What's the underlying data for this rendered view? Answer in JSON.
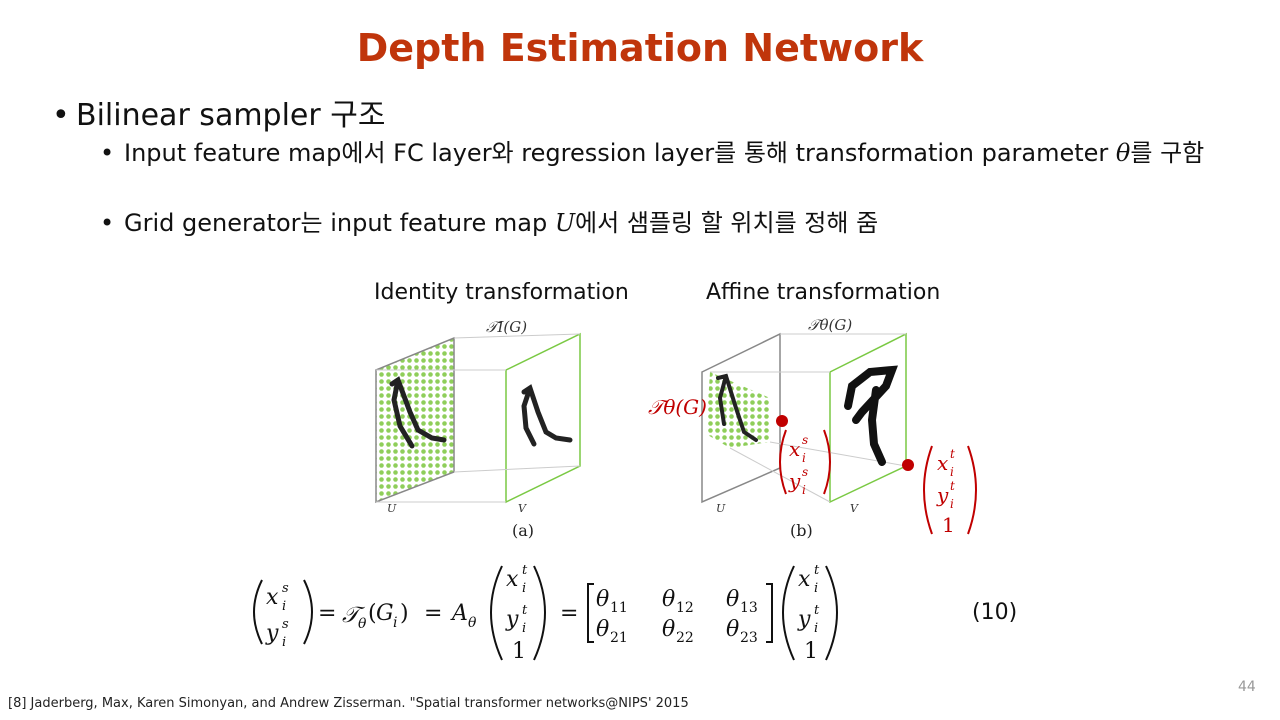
{
  "title": "Depth Estimation Network",
  "bullet1": "Bilinear sampler 구조",
  "sub1_before": "Input feature map에서 FC layer와 regression layer를 통해 transformation parameter ",
  "sub1_symbol": "θ",
  "sub1_after": "를 구함",
  "sub2_before": "Grid generator는 input feature map ",
  "sub2_symbol": "U",
  "sub2_after": "에서 샘플링 할 위치를 정해 줌",
  "figure": {
    "left_label": "Identity transformation",
    "right_label": "Affine transformation",
    "left_top": "𝒯I(G)",
    "right_top": "𝒯θ(G)",
    "U": "U",
    "V": "V",
    "a": "(a)",
    "b": "(b)",
    "red_T": "𝒯θ(G)",
    "colors": {
      "accent_red": "#c00000",
      "grid_green": "#8fce5a",
      "title": "#c0350b"
    }
  },
  "equation_number": "(10)",
  "footnote": "[8] Jaderberg, Max, Karen Simonyan, and Andrew Zisserman. \"Spatial transformer networks@NIPS' 2015",
  "page_number": "44"
}
